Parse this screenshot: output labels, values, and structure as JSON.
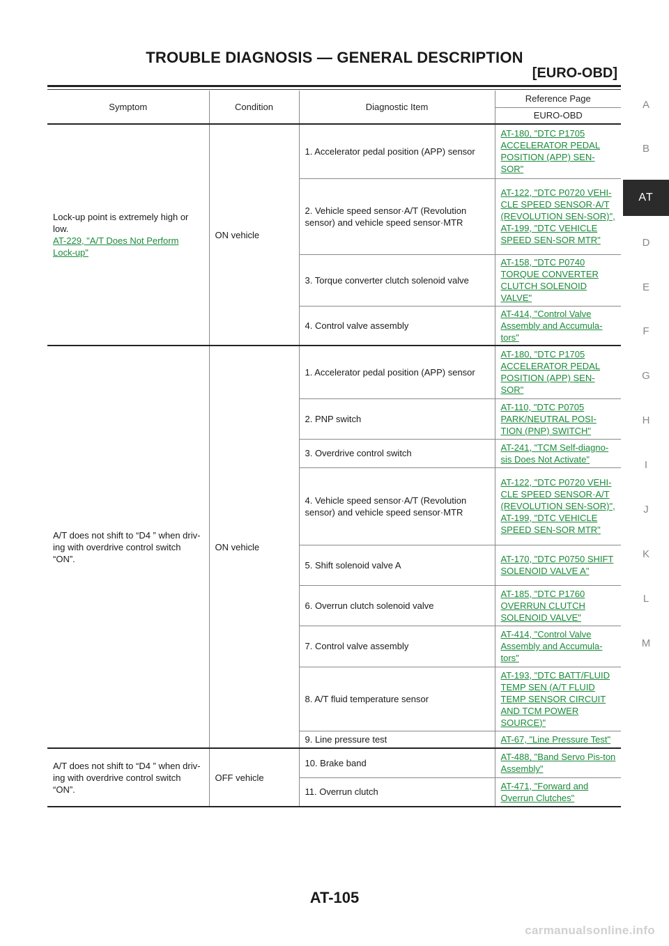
{
  "header": {
    "title": "TROUBLE DIAGNOSIS — GENERAL DESCRIPTION",
    "subtitle": "[EURO-OBD]"
  },
  "side_index": [
    "A",
    "B",
    "AT",
    "D",
    "E",
    "F",
    "G",
    "H",
    "I",
    "J",
    "K",
    "L",
    "M"
  ],
  "side_active": "AT",
  "table": {
    "col_symptom": "Symptom",
    "col_condition": "Condition",
    "col_item": "Diagnostic Item",
    "col_reference": "Reference Page",
    "col_reference_sub": "EURO-OBD",
    "groups": [
      {
        "symptom_text": "Lock-up point is extremely high or low.",
        "symptom_link": "AT-229, \"A/T Does Not Perform Lock-up\"",
        "condition": "ON vehicle",
        "rows": [
          {
            "item": "1. Accelerator pedal position (APP) sensor",
            "ref": "AT-180, \"DTC P1705 ACCELERATOR PEDAL POSITION (APP) SEN-SOR\"",
            "ref2": ""
          },
          {
            "item": "2. Vehicle speed sensor·A/T (Revolution sensor) and vehicle speed sensor·MTR",
            "ref": "AT-122, \"DTC P0720 VEHI-CLE SPEED SENSOR·A/T (REVOLUTION SEN-SOR)\", AT-199, \"DTC VEHICLE SPEED SEN-SOR MTR\"",
            "ref2": ""
          },
          {
            "item": "3. Torque converter clutch solenoid valve",
            "ref": "AT-158, \"DTC P0740 TORQUE CONVERTER CLUTCH SOLENOID VALVE\"",
            "ref2": ""
          },
          {
            "item": "4. Control valve assembly",
            "ref": "AT-414, \"Control Valve Assembly and Accumula-tors\"",
            "ref2": ""
          }
        ]
      },
      {
        "symptom_text": "A/T does not shift to “D4 ” when driv-ing with overdrive control switch “ON”.",
        "symptom_link": "",
        "condition": "ON vehicle",
        "rows": [
          {
            "item": "1. Accelerator pedal position (APP) sensor",
            "ref": "AT-180, \"DTC P1705 ACCELERATOR PEDAL POSITION (APP) SEN-SOR\"",
            "ref2": ""
          },
          {
            "item": "2. PNP switch",
            "ref": "AT-110, \"DTC P0705 PARK/NEUTRAL POSI-TION (PNP) SWITCH\"",
            "ref2": ""
          },
          {
            "item": "3. Overdrive control switch",
            "ref": "AT-241, \"TCM Self-diagno-sis Does Not Activate\"",
            "ref2": ""
          },
          {
            "item": "4. Vehicle speed sensor·A/T (Revolution sensor) and vehicle speed sensor·MTR",
            "ref": "AT-122, \"DTC P0720 VEHI-CLE SPEED SENSOR·A/T (REVOLUTION SEN-SOR)\", AT-199, \"DTC VEHICLE SPEED SEN-SOR MTR\"",
            "ref2": ""
          },
          {
            "item": "5. Shift solenoid valve A",
            "ref": "AT-170, \"DTC P0750 SHIFT SOLENOID VALVE A\"",
            "ref2": ""
          },
          {
            "item": "6. Overrun clutch solenoid valve",
            "ref": "AT-185, \"DTC P1760 OVERRUN CLUTCH SOLENOID VALVE\"",
            "ref2": ""
          },
          {
            "item": "7. Control valve assembly",
            "ref": "AT-414, \"Control Valve Assembly and Accumula-tors\"",
            "ref2": ""
          },
          {
            "item": "8. A/T fluid temperature sensor",
            "ref": "AT-193, \"DTC BATT/FLUID TEMP SEN (A/T FLUID TEMP SENSOR CIRCUIT AND TCM POWER SOURCE)\"",
            "ref2": ""
          },
          {
            "item": "9. Line pressure test",
            "ref": "AT-67, \"Line Pressure Test\"",
            "ref2": ""
          }
        ]
      },
      {
        "symptom_text": "A/T does not shift to “D4 ” when driv-ing with overdrive control switch “ON”.",
        "symptom_link": "",
        "condition": "OFF vehicle",
        "rows": [
          {
            "item": "10. Brake band",
            "ref": "AT-488, \"Band Servo Pis-ton Assembly\"",
            "ref2": ""
          },
          {
            "item": "11. Overrun clutch",
            "ref": "AT-471, \"Forward and Overrun Clutches\"",
            "ref2": ""
          }
        ]
      }
    ]
  },
  "footer": {
    "page_number": "AT-105",
    "watermark": "carmanualsonline.info"
  },
  "colors": {
    "link": "#1a8a3a",
    "side_active_bg": "#2b2b2b"
  }
}
